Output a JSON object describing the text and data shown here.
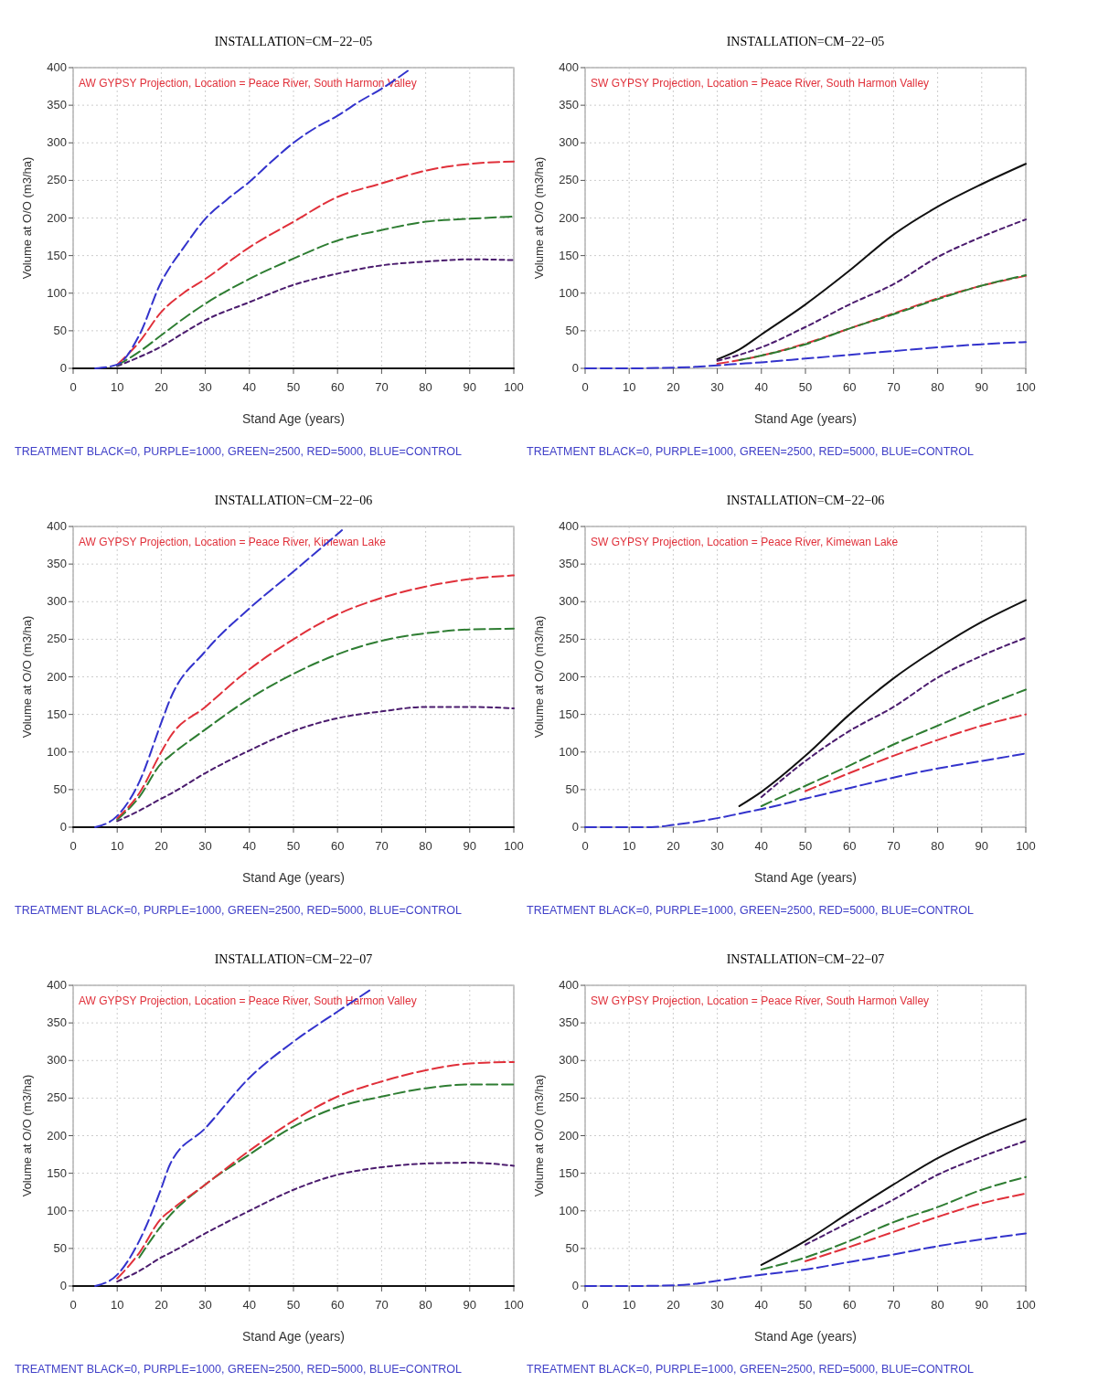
{
  "chart_data": [
    {
      "type": "line",
      "title": "INSTALLATION=CM−22−05",
      "xlabel": "Stand Age (years)",
      "ylabel": "Volume at O/O (m3/ha)",
      "annotations": [
        "AW GYPSY Projection, Location = Peace River, South Harmon Valley",
        "TREATMENT BLACK=0, PURPLE=1000, GREEN=2500, RED=5000, BLUE=CONTROL"
      ],
      "xlim": [
        0,
        100
      ],
      "xticks": [
        0,
        10,
        20,
        30,
        40,
        50,
        60,
        70,
        80,
        90,
        100
      ],
      "ylim": [
        0,
        400
      ],
      "yticks": [
        0,
        50,
        100,
        150,
        200,
        250,
        300,
        350,
        400
      ],
      "grid": true,
      "series": [
        {
          "color": "#111111",
          "line_style": "solid",
          "x": [
            0,
            10,
            20,
            30,
            40,
            50,
            60,
            70,
            80,
            90,
            100
          ],
          "values": [
            0,
            0,
            0,
            0,
            0,
            0,
            0,
            0,
            0,
            0,
            0
          ]
        },
        {
          "color": "#4b1c6e",
          "line_style": "dotted",
          "x": [
            10,
            15,
            20,
            25,
            30,
            40,
            50,
            60,
            70,
            80,
            90,
            100
          ],
          "values": [
            3,
            15,
            29,
            47,
            64,
            88,
            111,
            126,
            137,
            142,
            145,
            144
          ]
        },
        {
          "color": "#2e7d32",
          "line_style": "dashed",
          "x": [
            10,
            15,
            20,
            25,
            30,
            40,
            50,
            60,
            70,
            80,
            90,
            100
          ],
          "values": [
            4,
            22,
            44,
            66,
            86,
            119,
            146,
            170,
            184,
            195,
            199,
            202
          ]
        },
        {
          "color": "#e0303a",
          "line_style": "dashed",
          "x": [
            10,
            15,
            20,
            25,
            30,
            40,
            50,
            60,
            70,
            80,
            90,
            100
          ],
          "values": [
            5,
            35,
            75,
            100,
            119,
            161,
            195,
            228,
            246,
            263,
            272,
            275
          ]
        },
        {
          "color": "#3333cc",
          "line_style": "dashed",
          "x": [
            5,
            10,
            15,
            20,
            22,
            25,
            30,
            35,
            40,
            45,
            50,
            55,
            60,
            65,
            70,
            76
          ],
          "values": [
            0,
            5,
            44,
            115,
            135,
            160,
            199,
            225,
            248,
            275,
            300,
            320,
            336,
            355,
            372,
            396
          ]
        }
      ]
    },
    {
      "type": "line",
      "title": "INSTALLATION=CM−22−05",
      "xlabel": "Stand Age (years)",
      "ylabel": "Volume at O/O (m3/ha)",
      "annotations": [
        "SW GYPSY Projection, Location = Peace River, South Harmon Valley",
        "TREATMENT BLACK=0, PURPLE=1000, GREEN=2500, RED=5000, BLUE=CONTROL"
      ],
      "xlim": [
        0,
        100
      ],
      "xticks": [
        0,
        10,
        20,
        30,
        40,
        50,
        60,
        70,
        80,
        90,
        100
      ],
      "ylim": [
        0,
        400
      ],
      "yticks": [
        0,
        50,
        100,
        150,
        200,
        250,
        300,
        350,
        400
      ],
      "grid": true,
      "series": [
        {
          "color": "#111111",
          "line_style": "solid",
          "x": [
            30,
            35,
            40,
            50,
            60,
            70,
            80,
            90,
            100
          ],
          "values": [
            12,
            25,
            45,
            85,
            130,
            178,
            215,
            245,
            272
          ]
        },
        {
          "color": "#4b1c6e",
          "line_style": "dotted",
          "x": [
            30,
            35,
            40,
            50,
            60,
            70,
            80,
            90,
            100
          ],
          "values": [
            10,
            18,
            28,
            55,
            85,
            112,
            148,
            175,
            198
          ]
        },
        {
          "color": "#e0303a",
          "line_style": "dashed",
          "x": [
            30,
            35,
            40,
            50,
            60,
            70,
            80,
            90,
            100
          ],
          "values": [
            6,
            11,
            17,
            33,
            53,
            73,
            93,
            110,
            123
          ]
        },
        {
          "color": "#2e7d32",
          "line_style": "dashed",
          "x": [
            35,
            40,
            50,
            60,
            70,
            80,
            90,
            100
          ],
          "values": [
            11,
            17,
            32,
            53,
            72,
            92,
            110,
            124
          ]
        },
        {
          "color": "#3333cc",
          "line_style": "dashed",
          "x": [
            0,
            10,
            20,
            25,
            30,
            35,
            40,
            50,
            60,
            70,
            80,
            90,
            100
          ],
          "values": [
            0,
            0,
            1,
            2,
            4,
            6,
            8,
            13,
            18,
            23,
            28,
            32,
            35
          ]
        }
      ]
    },
    {
      "type": "line",
      "title": "INSTALLATION=CM−22−06",
      "xlabel": "Stand Age (years)",
      "ylabel": "Volume at O/O (m3/ha)",
      "annotations": [
        "AW GYPSY Projection, Location = Peace River, Kimewan Lake",
        "TREATMENT BLACK=0, PURPLE=1000, GREEN=2500, RED=5000, BLUE=CONTROL"
      ],
      "xlim": [
        0,
        100
      ],
      "xticks": [
        0,
        10,
        20,
        30,
        40,
        50,
        60,
        70,
        80,
        90,
        100
      ],
      "ylim": [
        0,
        400
      ],
      "yticks": [
        0,
        50,
        100,
        150,
        200,
        250,
        300,
        350,
        400
      ],
      "grid": true,
      "series": [
        {
          "color": "#111111",
          "line_style": "solid",
          "x": [
            0,
            10,
            20,
            30,
            40,
            50,
            60,
            70,
            80,
            90,
            100
          ],
          "values": [
            0,
            0,
            0,
            0,
            0,
            0,
            0,
            0,
            0,
            0,
            0
          ]
        },
        {
          "color": "#4b1c6e",
          "line_style": "dotted",
          "x": [
            10,
            15,
            20,
            22,
            30,
            40,
            50,
            60,
            70,
            80,
            90,
            100
          ],
          "values": [
            8,
            22,
            38,
            44,
            72,
            102,
            128,
            145,
            154,
            160,
            160,
            158
          ]
        },
        {
          "color": "#2e7d32",
          "line_style": "dashed",
          "x": [
            10,
            15,
            20,
            22,
            30,
            40,
            50,
            60,
            70,
            80,
            90,
            100
          ],
          "values": [
            10,
            40,
            85,
            95,
            130,
            171,
            204,
            230,
            248,
            258,
            263,
            264
          ]
        },
        {
          "color": "#e0303a",
          "line_style": "dashed",
          "x": [
            10,
            15,
            20,
            22,
            30,
            40,
            50,
            60,
            70,
            80,
            90,
            100
          ],
          "values": [
            12,
            45,
            100,
            120,
            160,
            210,
            250,
            283,
            305,
            320,
            330,
            335
          ]
        },
        {
          "color": "#3333cc",
          "line_style": "dashed",
          "x": [
            5,
            10,
            15,
            20,
            22,
            30,
            40,
            50,
            60,
            61
          ],
          "values": [
            0,
            15,
            60,
            139,
            170,
            234,
            291,
            340,
            390,
            395
          ]
        }
      ]
    },
    {
      "type": "line",
      "title": "INSTALLATION=CM−22−06",
      "xlabel": "Stand Age (years)",
      "ylabel": "Volume at O/O (m3/ha)",
      "annotations": [
        "SW GYPSY Projection, Location = Peace River, Kimewan Lake",
        "TREATMENT BLACK=0, PURPLE=1000, GREEN=2500, RED=5000, BLUE=CONTROL"
      ],
      "xlim": [
        0,
        100
      ],
      "xticks": [
        0,
        10,
        20,
        30,
        40,
        50,
        60,
        70,
        80,
        90,
        100
      ],
      "ylim": [
        0,
        400
      ],
      "yticks": [
        0,
        50,
        100,
        150,
        200,
        250,
        300,
        350,
        400
      ],
      "grid": true,
      "series": [
        {
          "color": "#111111",
          "line_style": "solid",
          "x": [
            35,
            40,
            50,
            60,
            70,
            80,
            90,
            100
          ],
          "values": [
            28,
            47,
            95,
            150,
            198,
            238,
            273,
            302
          ]
        },
        {
          "color": "#4b1c6e",
          "line_style": "dotted",
          "x": [
            40,
            50,
            60,
            70,
            80,
            90,
            100
          ],
          "values": [
            40,
            88,
            128,
            160,
            199,
            228,
            252
          ]
        },
        {
          "color": "#2e7d32",
          "line_style": "dashed",
          "x": [
            40,
            50,
            60,
            70,
            80,
            90,
            100
          ],
          "values": [
            28,
            55,
            82,
            110,
            135,
            160,
            183
          ]
        },
        {
          "color": "#e0303a",
          "line_style": "dashed",
          "x": [
            50,
            60,
            70,
            80,
            90,
            100
          ],
          "values": [
            48,
            72,
            95,
            116,
            135,
            150
          ]
        },
        {
          "color": "#3333cc",
          "line_style": "dashed",
          "x": [
            0,
            10,
            15,
            20,
            25,
            30,
            35,
            40,
            50,
            60,
            70,
            80,
            90,
            100
          ],
          "values": [
            0,
            0,
            0,
            3,
            7,
            12,
            18,
            24,
            38,
            52,
            66,
            78,
            88,
            98
          ]
        }
      ]
    },
    {
      "type": "line",
      "title": "INSTALLATION=CM−22−07",
      "xlabel": "Stand Age (years)",
      "ylabel": "Volume at O/O (m3/ha)",
      "annotations": [
        "AW GYPSY Projection, Location = Peace River, South Harmon Valley",
        "TREATMENT BLACK=0, PURPLE=1000, GREEN=2500, RED=5000, BLUE=CONTROL"
      ],
      "xlim": [
        0,
        100
      ],
      "xticks": [
        0,
        10,
        20,
        30,
        40,
        50,
        60,
        70,
        80,
        90,
        100
      ],
      "ylim": [
        0,
        400
      ],
      "yticks": [
        0,
        50,
        100,
        150,
        200,
        250,
        300,
        350,
        400
      ],
      "grid": true,
      "series": [
        {
          "color": "#111111",
          "line_style": "solid",
          "x": [
            0,
            10,
            20,
            30,
            40,
            50,
            60,
            70,
            80,
            90,
            100
          ],
          "values": [
            0,
            0,
            0,
            0,
            0,
            0,
            0,
            0,
            0,
            0,
            0
          ]
        },
        {
          "color": "#4b1c6e",
          "line_style": "dotted",
          "x": [
            10,
            15,
            20,
            22,
            30,
            40,
            50,
            60,
            70,
            80,
            90,
            100
          ],
          "values": [
            6,
            20,
            38,
            44,
            70,
            100,
            128,
            148,
            158,
            163,
            164,
            160
          ]
        },
        {
          "color": "#2e7d32",
          "line_style": "dashed",
          "x": [
            15,
            20,
            22,
            30,
            40,
            50,
            60,
            70,
            80,
            90,
            100
          ],
          "values": [
            38,
            80,
            94,
            135,
            175,
            212,
            238,
            252,
            263,
            268,
            268
          ]
        },
        {
          "color": "#e0303a",
          "line_style": "dashed",
          "x": [
            10,
            15,
            20,
            22,
            30,
            40,
            50,
            60,
            70,
            80,
            90,
            100
          ],
          "values": [
            10,
            44,
            90,
            100,
            135,
            180,
            220,
            252,
            272,
            287,
            296,
            298
          ]
        },
        {
          "color": "#3333cc",
          "line_style": "dashed",
          "x": [
            5,
            10,
            15,
            20,
            22,
            30,
            40,
            50,
            60,
            68
          ],
          "values": [
            0,
            15,
            60,
            130,
            162,
            210,
            277,
            325,
            365,
            396
          ]
        }
      ]
    },
    {
      "type": "line",
      "title": "INSTALLATION=CM−22−07",
      "xlabel": "Stand Age (years)",
      "ylabel": "Volume at O/O (m3/ha)",
      "annotations": [
        "SW GYPSY Projection, Location = Peace River, South Harmon Valley",
        "TREATMENT BLACK=0, PURPLE=1000, GREEN=2500, RED=5000, BLUE=CONTROL"
      ],
      "xlim": [
        0,
        100
      ],
      "xticks": [
        0,
        10,
        20,
        30,
        40,
        50,
        60,
        70,
        80,
        90,
        100
      ],
      "ylim": [
        0,
        400
      ],
      "yticks": [
        0,
        50,
        100,
        150,
        200,
        250,
        300,
        350,
        400
      ],
      "grid": true,
      "series": [
        {
          "color": "#111111",
          "line_style": "solid",
          "x": [
            40,
            50,
            60,
            70,
            80,
            90,
            100
          ],
          "values": [
            28,
            60,
            98,
            135,
            170,
            198,
            222
          ]
        },
        {
          "color": "#4b1c6e",
          "line_style": "dotted",
          "x": [
            50,
            60,
            70,
            80,
            90,
            100
          ],
          "values": [
            55,
            85,
            115,
            148,
            172,
            193
          ]
        },
        {
          "color": "#2e7d32",
          "line_style": "dashed",
          "x": [
            40,
            50,
            60,
            70,
            80,
            90,
            100
          ],
          "values": [
            22,
            38,
            60,
            85,
            105,
            128,
            145
          ]
        },
        {
          "color": "#e0303a",
          "line_style": "dashed",
          "x": [
            50,
            60,
            70,
            80,
            90,
            100
          ],
          "values": [
            33,
            52,
            72,
            92,
            110,
            123
          ]
        },
        {
          "color": "#3333cc",
          "line_style": "dashed",
          "x": [
            0,
            10,
            20,
            25,
            30,
            35,
            40,
            50,
            60,
            70,
            80,
            90,
            100
          ],
          "values": [
            0,
            0,
            1,
            3,
            7,
            11,
            15,
            22,
            32,
            42,
            53,
            62,
            70
          ]
        }
      ]
    }
  ]
}
